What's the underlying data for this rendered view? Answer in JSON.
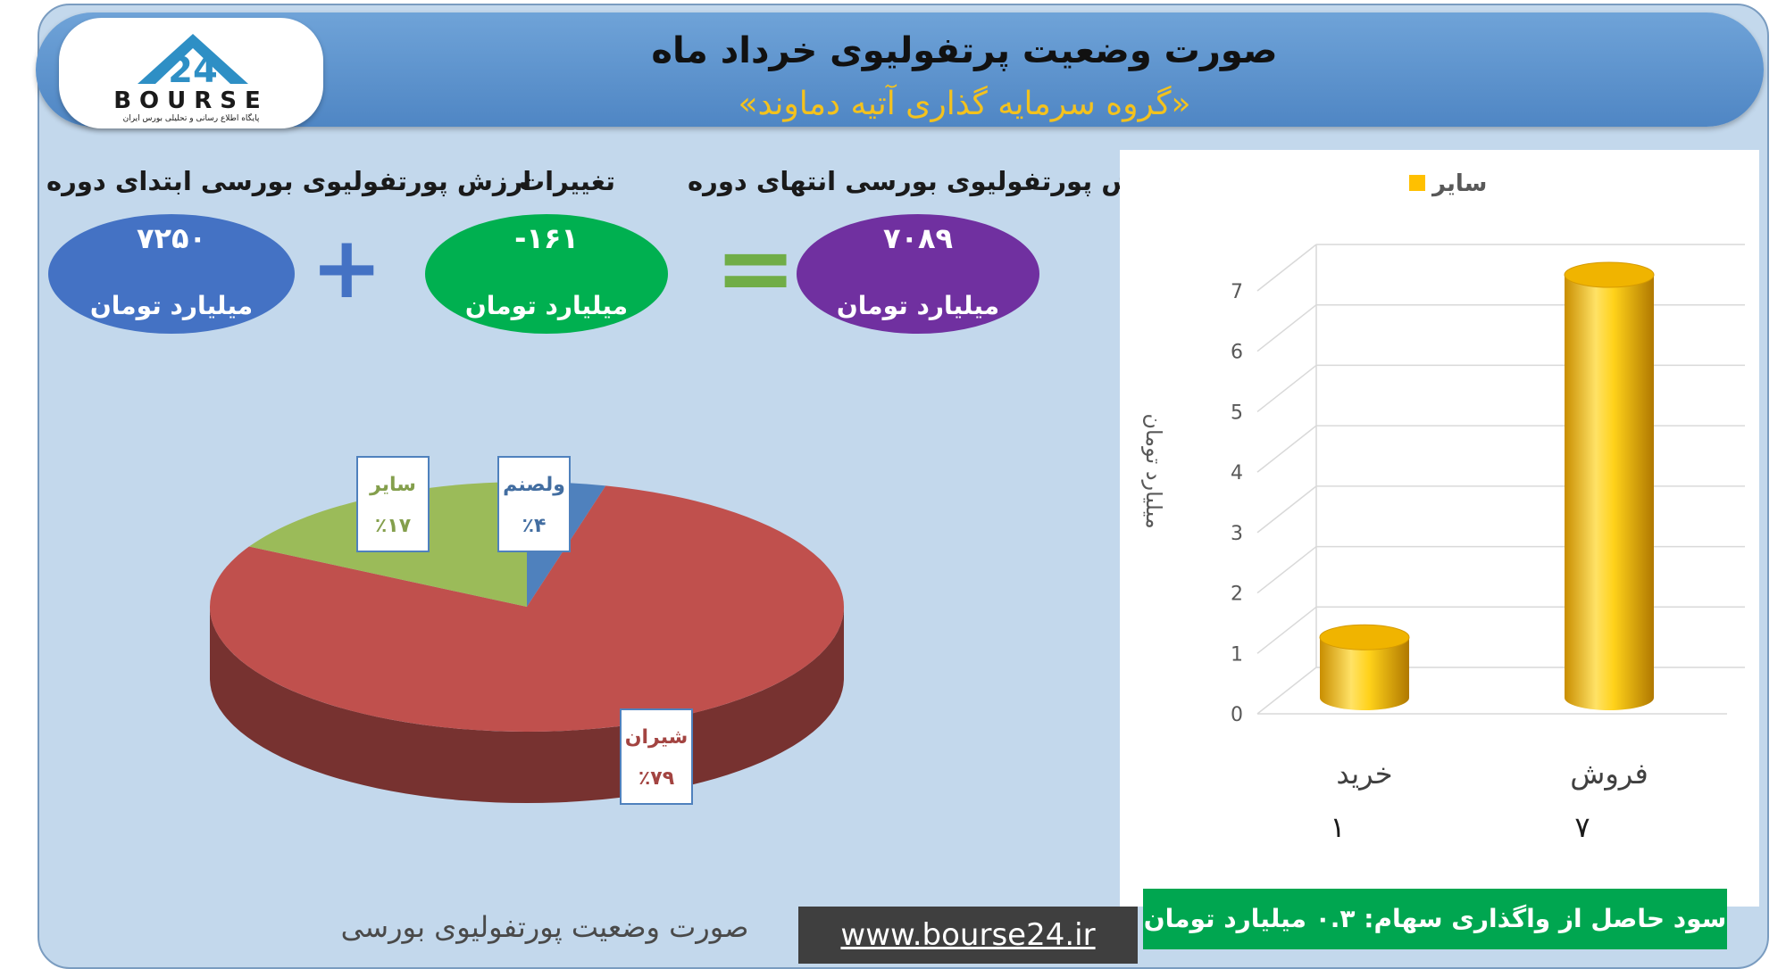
{
  "header": {
    "title": "صورت وضعیت پرتفولیوی خرداد ماه",
    "subtitle": "«گروه سرمایه گذاری آتیه دماوند»"
  },
  "logo": {
    "text": "BOURSE",
    "tagline": "پایگاه اطلاع رسانی و تحلیلی بورس ایران"
  },
  "kpis": {
    "start": {
      "label": "ارزش پورتفولیوی بورسی ابتدای دوره",
      "value": "۷۲۵۰",
      "unit": "میلیارد تومان",
      "color": "#4472c4"
    },
    "change": {
      "label": "تغییرات",
      "value": "-۱۶۱",
      "unit": "میلیارد تومان",
      "color": "#00b050"
    },
    "end": {
      "label": "ارزش پورتفولیوی بورسی انتهای دوره",
      "value": "۷۰۸۹",
      "unit": "میلیارد تومان",
      "color": "#7030a0"
    },
    "plus_sign": "+",
    "equals_sign": "="
  },
  "chart_data": [
    {
      "type": "pie",
      "slices": [
        {
          "label": "شیران",
          "percent_label": "٪۷۹",
          "value": 79,
          "color": "#c0504d"
        },
        {
          "label": "ولصنم",
          "percent_label": "٪۴",
          "value": 4,
          "color": "#4f81bd"
        },
        {
          "label": "سایر",
          "percent_label": "٪۱۷",
          "value": 17,
          "color": "#9bbb59"
        }
      ],
      "caption": "صورت وضعیت پورتفولیوی بورسی"
    },
    {
      "type": "bar",
      "legend": [
        "سایر"
      ],
      "legend_position": "top",
      "categories": [
        "فروش",
        "خرید"
      ],
      "values": [
        7,
        1
      ],
      "value_labels": [
        "۷",
        "۱"
      ],
      "ylabel": "میلیارد تومان",
      "ylim": [
        0,
        7
      ],
      "yticks": [
        0,
        1,
        2,
        3,
        4,
        5,
        6,
        7
      ],
      "grid": true,
      "color": "#ffc000"
    }
  ],
  "profit": {
    "text": "سود حاصل از واگذاری سهام: ۰.۳ میلیارد تومان"
  },
  "website": "www.bourse24.ir"
}
